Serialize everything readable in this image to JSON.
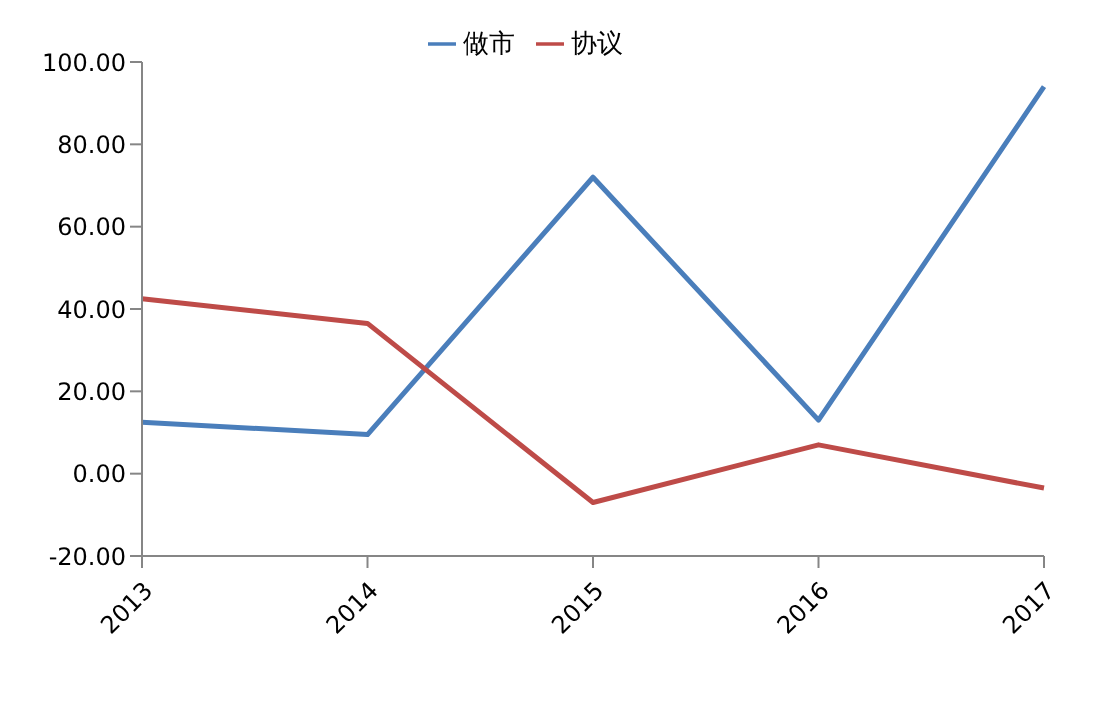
{
  "chart_data": {
    "type": "line",
    "categories": [
      "2013",
      "2014",
      "2015",
      "2016",
      "2017"
    ],
    "series": [
      {
        "name": "做市",
        "color": "#4a7ebb",
        "values": [
          12.5,
          9.5,
          72,
          13,
          94
        ]
      },
      {
        "name": "协议",
        "color": "#be4b48",
        "values": [
          42.5,
          36.5,
          -7,
          7,
          -3.5
        ]
      }
    ],
    "ylim": [
      -20,
      100
    ],
    "yticks": [
      {
        "value": -20,
        "label": "-20.00"
      },
      {
        "value": 0,
        "label": "0.00"
      },
      {
        "value": 20,
        "label": "20.00"
      },
      {
        "value": 40,
        "label": "40.00"
      },
      {
        "value": 60,
        "label": "60.00"
      },
      {
        "value": 80,
        "label": "80.00"
      },
      {
        "value": 100,
        "label": "100.00"
      }
    ],
    "grid": false,
    "legend": "top",
    "marker": "none",
    "line_style": "solid"
  }
}
